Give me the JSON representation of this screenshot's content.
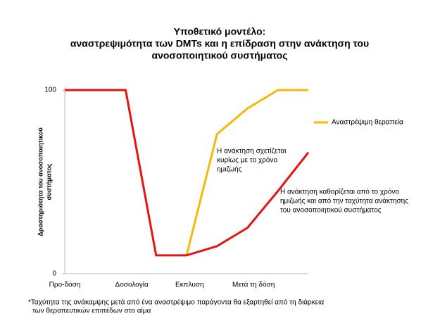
{
  "chart_data": {
    "type": "line",
    "title": [
      "Υποθετικό μοντέλο:",
      "αναστρεψιμότητα των DMTs και η επίδραση στην ανάκτηση του",
      "ανοσοποιητικού συστήματος"
    ],
    "y_label": [
      "Δραστηριότητα του ανοσοποιητικού",
      "συστήματος"
    ],
    "xlim": [
      0,
      8
    ],
    "xticks": [
      {
        "value": 0,
        "label": "Προ-δόση"
      },
      {
        "value": 2.2,
        "label": "Δοσολογία"
      },
      {
        "value": 4.1,
        "label": "Εκπλυση"
      },
      {
        "value": 6.2,
        "label": "Μετά τη δόση"
      }
    ],
    "ylim": [
      0,
      100
    ],
    "yticks": [
      0,
      100
    ],
    "series": [
      {
        "color": "#e8130f",
        "x": [
          0,
          2,
          3,
          4,
          5,
          6,
          7,
          8
        ],
        "values": [
          100,
          100,
          10,
          10,
          15,
          25,
          45,
          66
        ]
      },
      {
        "name": "Αναστρέψιμη θεραπεία",
        "color": "#f5b90a",
        "x": [
          4,
          5,
          6,
          7,
          8
        ],
        "values": [
          10,
          76,
          90,
          100,
          100
        ]
      }
    ],
    "annotations": [
      [
        "Η ανάκτηση σχετίζεται",
        "κυρίως με το χρόνο",
        "ημιζωής"
      ],
      [
        "Η ανάκτηση καθορίζεται από το  χρόνο",
        "ημιζωής και από την ταχύτητα ανάκτησης",
        "του ανοσοποιητικού συστήματος"
      ]
    ],
    "footnote": [
      "*Ταχύτητα της ανάκαμψης μετά από ένα αναστρέψιμο παράγοντα θα εξαρτηθεί από τη διάρκεια",
      "των θεραπευτικών επιπέδων  στο αίμα"
    ],
    "legend": "right"
  }
}
